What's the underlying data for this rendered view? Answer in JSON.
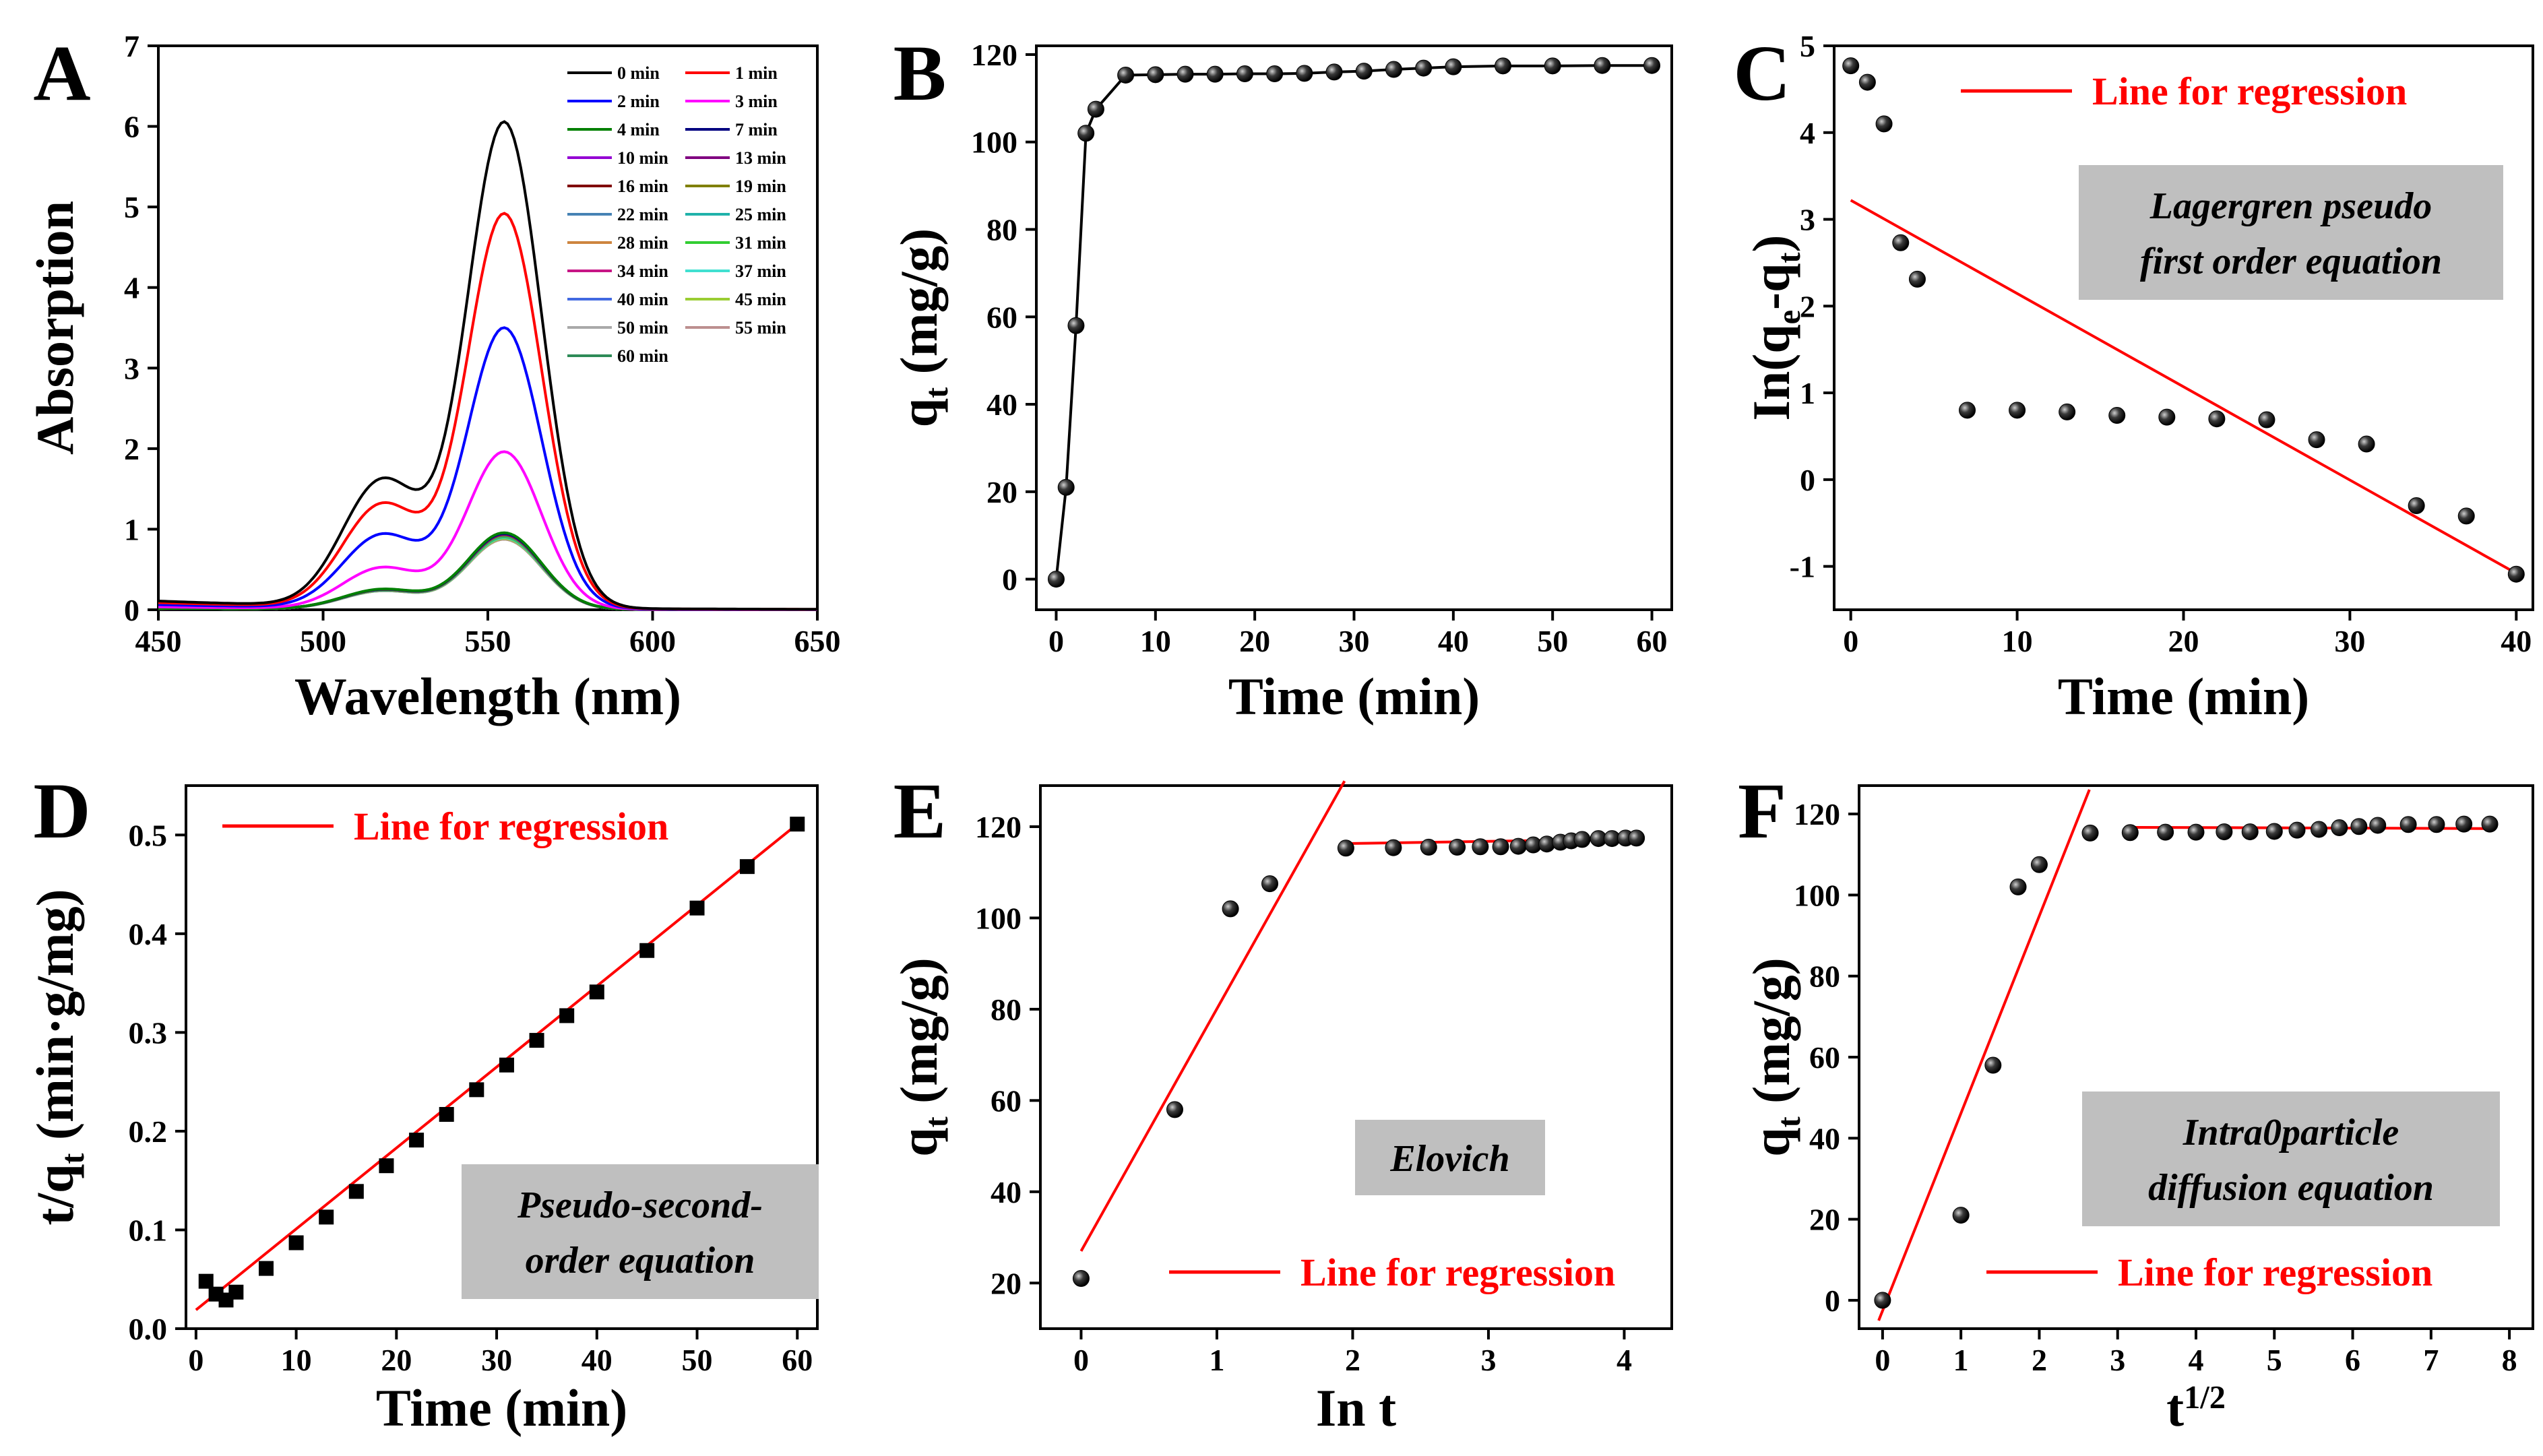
{
  "chart_data": [
    {
      "panel": "A",
      "type": "line",
      "xlabel": "Wavelength (nm)",
      "ylabel": "Absorption",
      "xlim": [
        450,
        650
      ],
      "ylim": [
        0,
        7
      ],
      "xticks": [
        450,
        500,
        550,
        600,
        650
      ],
      "yticks": [
        0,
        1,
        2,
        3,
        4,
        5,
        6,
        7
      ],
      "legend": [
        "0 min",
        "1 min",
        "2 min",
        "3 min",
        "4 min",
        "7 min",
        "10 min",
        "13 min",
        "16 min",
        "19 min",
        "22 min",
        "25 min",
        "28 min",
        "31 min",
        "34 min",
        "37 min",
        "40 min",
        "45 min",
        "50 min",
        "55 min",
        "60 min"
      ],
      "legend_position": "top-right",
      "series": [
        {
          "name": "0 min",
          "color": "#000000",
          "peak": 6.02
        },
        {
          "name": "1 min",
          "color": "#ff0000",
          "peak": 4.89
        },
        {
          "name": "2 min",
          "color": "#0000ff",
          "peak": 3.48
        },
        {
          "name": "3 min",
          "color": "#ff00ff",
          "peak": 1.95
        },
        {
          "name": "4 min",
          "color": "#008000",
          "peak": 0.95
        },
        {
          "name": "7 min",
          "color": "#000080",
          "peak": 0.94
        },
        {
          "name": "10 min",
          "color": "#9400d3",
          "peak": 0.94
        },
        {
          "name": "13 min",
          "color": "#800080",
          "peak": 0.93
        },
        {
          "name": "16 min",
          "color": "#800000",
          "peak": 0.93
        },
        {
          "name": "19 min",
          "color": "#808000",
          "peak": 0.92
        },
        {
          "name": "22 min",
          "color": "#4682b4",
          "peak": 0.92
        },
        {
          "name": "25 min",
          "color": "#20b2aa",
          "peak": 0.91
        },
        {
          "name": "28 min",
          "color": "#cd853f",
          "peak": 0.91
        },
        {
          "name": "31 min",
          "color": "#32cd32",
          "peak": 0.9
        },
        {
          "name": "34 min",
          "color": "#c71585",
          "peak": 0.9
        },
        {
          "name": "37 min",
          "color": "#40e0d0",
          "peak": 0.89
        },
        {
          "name": "40 min",
          "color": "#4169e1",
          "peak": 0.89
        },
        {
          "name": "45 min",
          "color": "#9acd32",
          "peak": 0.88
        },
        {
          "name": "50 min",
          "color": "#a9a9a9",
          "peak": 0.88
        },
        {
          "name": "55 min",
          "color": "#bc8f8f",
          "peak": 0.87
        },
        {
          "name": "60 min",
          "color": "#2e8b57",
          "peak": 0.87
        }
      ]
    },
    {
      "panel": "B",
      "type": "line",
      "xlabel": "Time (min)",
      "ylabel": "q_t (mg/g)",
      "xlim": [
        -2,
        62
      ],
      "ylim": [
        -7,
        122
      ],
      "xticks": [
        0,
        10,
        20,
        30,
        40,
        50,
        60
      ],
      "yticks": [
        0,
        20,
        40,
        60,
        80,
        100,
        120
      ],
      "x": [
        0,
        1,
        2,
        3,
        4,
        7,
        10,
        13,
        16,
        19,
        22,
        25,
        28,
        31,
        34,
        37,
        40,
        45,
        50,
        55,
        60
      ],
      "y": [
        0,
        21,
        58,
        102,
        107.5,
        115.3,
        115.4,
        115.5,
        115.5,
        115.6,
        115.6,
        115.7,
        116,
        116.2,
        116.6,
        116.9,
        117.2,
        117.4,
        117.4,
        117.5,
        117.5
      ]
    },
    {
      "panel": "C",
      "type": "scatter",
      "xlabel": "Time (min)",
      "ylabel": "In(q_e-q_t)",
      "xlim": [
        -1,
        41
      ],
      "ylim": [
        -1.5,
        5
      ],
      "xticks": [
        0,
        10,
        20,
        30,
        40
      ],
      "yticks": [
        -1,
        0,
        1,
        2,
        3,
        4,
        5
      ],
      "x": [
        0,
        1,
        2,
        3,
        4,
        7,
        10,
        13,
        16,
        19,
        22,
        25,
        28,
        31,
        34,
        37,
        40
      ],
      "y": [
        4.77,
        4.58,
        4.1,
        2.73,
        2.31,
        0.8,
        0.8,
        0.78,
        0.74,
        0.72,
        0.7,
        0.69,
        0.46,
        0.41,
        -0.3,
        -0.42,
        -1.09
      ],
      "regression": {
        "x": [
          0,
          40
        ],
        "y": [
          3.22,
          -1.08
        ]
      },
      "legend": "Line for regression",
      "annotation": [
        "Lagergren pseudo",
        "first order equation"
      ]
    },
    {
      "panel": "D",
      "type": "scatter",
      "xlabel": "Time (min)",
      "ylabel": "t/q_t (min·g/mg)",
      "xlim": [
        -1,
        62
      ],
      "ylim": [
        0,
        0.55
      ],
      "xticks": [
        0,
        10,
        20,
        30,
        40,
        50,
        60
      ],
      "yticks": [
        0.0,
        0.1,
        0.2,
        0.3,
        0.4,
        0.5
      ],
      "x": [
        1,
        2,
        3,
        4,
        7,
        10,
        13,
        16,
        19,
        22,
        25,
        28,
        31,
        34,
        37,
        40,
        45,
        50,
        55,
        60
      ],
      "y": [
        0.048,
        0.035,
        0.029,
        0.037,
        0.061,
        0.087,
        0.113,
        0.139,
        0.165,
        0.191,
        0.217,
        0.242,
        0.267,
        0.292,
        0.317,
        0.341,
        0.383,
        0.426,
        0.468,
        0.511
      ],
      "regression": {
        "x": [
          0,
          60
        ],
        "y": [
          0.019,
          0.511
        ]
      },
      "legend": "Line for regression",
      "annotation": [
        "Pseudo-second-",
        "order equation"
      ]
    },
    {
      "panel": "E",
      "type": "scatter",
      "xlabel": "In t",
      "ylabel": "q_t (mg/g)",
      "xlim": [
        -0.3,
        4.35
      ],
      "ylim": [
        10,
        129
      ],
      "xticks": [
        0,
        1,
        2,
        3,
        4
      ],
      "yticks": [
        20,
        40,
        60,
        80,
        100,
        120
      ],
      "x": [
        0,
        0.69,
        1.1,
        1.39,
        1.95,
        2.3,
        2.56,
        2.77,
        2.94,
        3.09,
        3.22,
        3.33,
        3.43,
        3.53,
        3.61,
        3.69,
        3.81,
        3.91,
        4.01,
        4.09
      ],
      "y": [
        21,
        58,
        102,
        107.5,
        115.3,
        115.4,
        115.5,
        115.5,
        115.6,
        115.6,
        115.7,
        116,
        116.2,
        116.6,
        116.9,
        117.2,
        117.4,
        117.4,
        117.5,
        117.5
      ],
      "regression": [
        {
          "x": [
            0,
            1.94
          ],
          "y": [
            27,
            130
          ]
        },
        {
          "x": [
            1.95,
            4.1
          ],
          "y": [
            116.3,
            117.3
          ]
        }
      ],
      "legend": "Line for regression",
      "annotation": [
        "Elovich"
      ]
    },
    {
      "panel": "F",
      "type": "scatter",
      "xlabel": "t^{1/2}",
      "ylabel": "q_t (mg/g)",
      "xlim": [
        -0.3,
        8.3
      ],
      "ylim": [
        -7,
        127
      ],
      "xticks": [
        0,
        1,
        2,
        3,
        4,
        5,
        6,
        7,
        8
      ],
      "yticks": [
        0,
        20,
        40,
        60,
        80,
        100,
        120
      ],
      "x": [
        0,
        1,
        1.41,
        1.73,
        2,
        2.65,
        3.16,
        3.61,
        4,
        4.36,
        4.69,
        5,
        5.29,
        5.57,
        5.83,
        6.08,
        6.32,
        6.71,
        7.07,
        7.42,
        7.75
      ],
      "y": [
        0,
        21,
        58,
        102,
        107.5,
        115.3,
        115.4,
        115.5,
        115.5,
        115.6,
        115.6,
        115.7,
        116,
        116.2,
        116.6,
        116.9,
        117.2,
        117.4,
        117.4,
        117.5,
        117.5
      ],
      "regression": [
        {
          "x": [
            -0.05,
            2.64
          ],
          "y": [
            -5,
            126
          ]
        },
        {
          "x": [
            3.16,
            7.8
          ],
          "y": [
            116.7,
            116.4
          ]
        }
      ],
      "legend": "Line for regression",
      "annotation": [
        "Intra0particle",
        "diffusion equation"
      ]
    }
  ]
}
